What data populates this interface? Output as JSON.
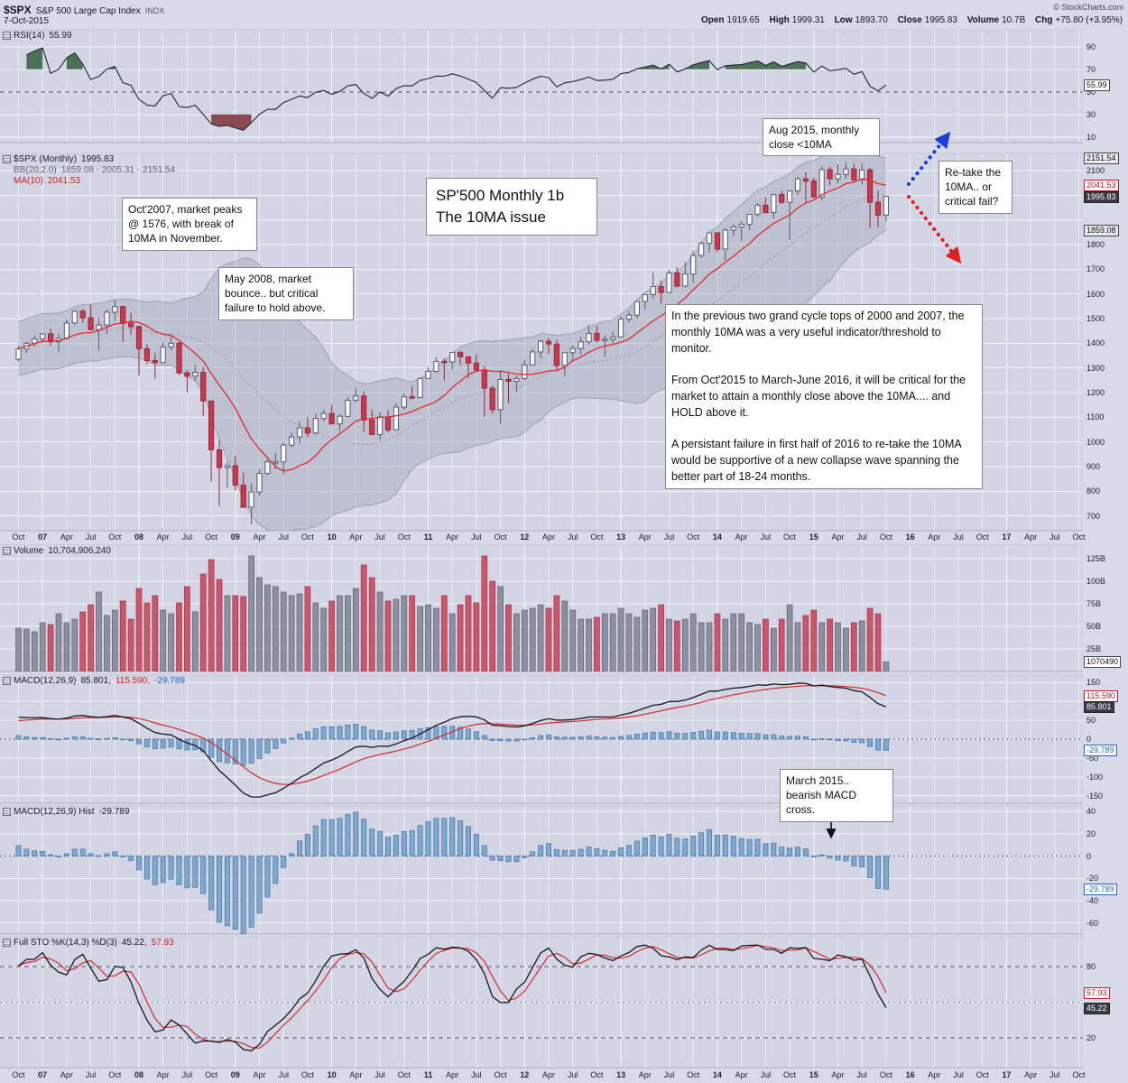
{
  "header": {
    "symbol": "$SPX",
    "name": "S&P 500 Large Cap Index",
    "exchange": "INDX",
    "copyright": "© StockCharts.com",
    "date": "7-Oct-2015",
    "quote": {
      "open_l": "Open",
      "open_v": "1919.65",
      "high_l": "High",
      "high_v": "1999.31",
      "low_l": "Low",
      "low_v": "1893.70",
      "close_l": "Close",
      "close_v": "1995.83",
      "vol_l": "Volume",
      "vol_v": "10.7B",
      "chg_l": "Chg",
      "chg_v": "+75.80 (+3.95%)"
    }
  },
  "panels": {
    "rsi": {
      "label": "RSI(14)",
      "value": "55.99"
    },
    "price": {
      "line1_label": "$SPX (Monthly)",
      "line1_value": "1995.83",
      "line2_label": "BB(20,2.0)",
      "line2_value": "1859.08 - 2005.31 - 2151.54",
      "line3_label": "MA(10)",
      "line3_value": "2041.53"
    },
    "vol": {
      "label": "Volume",
      "value": "10,704,906,240"
    },
    "macd": {
      "label": "MACD(12,26,9)",
      "value_macd": "85.801,",
      "value_signal": "115.590,",
      "value_hist": "-29.789"
    },
    "hist": {
      "label": "MACD(12,26,9) Hist",
      "value": "-29.789"
    },
    "sto": {
      "label": "Full STO %K(14,3) %D(3)",
      "value_k": "45.22,",
      "value_d": "57.93"
    }
  },
  "annotations": {
    "oct2007": "Oct'2007, market peaks @ 1576, with break of 10MA in November.",
    "may2008": "May 2008, market bounce.. but critical failure to hold above.",
    "title": "SP'500 Monthly 1b\nThe 10MA issue",
    "aug2015": "Aug 2015, monthly close <10MA",
    "retake": "Re-take the 10MA.. or critical fail?",
    "commentary": "In the previous two grand cycle tops of 2000 and 2007, the monthly 10MA was a very useful indicator/threshold to monitor.\n\nFrom Oct'2015 to March-June 2016, it will be critical for the market to attain a monthly close above the 10MA.... and HOLD above it.\n\nA persistant failure in first half of 2016 to re-take the 10MA would be supportive of a new collapse wave spanning the better part of 18-24 months.",
    "macd_cross": "March 2015.. bearish MACD cross."
  },
  "axes": {
    "x_ticks": [
      "Oct",
      "07",
      "Apr",
      "Jul",
      "Oct",
      "08",
      "Apr",
      "Jul",
      "Oct",
      "09",
      "Apr",
      "Jul",
      "Oct",
      "10",
      "Apr",
      "Jul",
      "Oct",
      "11",
      "Apr",
      "Jul",
      "Oct",
      "12",
      "Apr",
      "Jul",
      "Oct",
      "13",
      "Apr",
      "Jul",
      "Oct",
      "14",
      "Apr",
      "Jul",
      "Oct",
      "15",
      "Apr",
      "Jul",
      "Oct",
      "16",
      "Apr",
      "Jul",
      "Oct",
      "17",
      "Apr",
      "Jul",
      "Oct"
    ],
    "rsi": {
      "ticks": [
        "90",
        "70",
        "50",
        "30",
        "10"
      ],
      "badges": [
        {
          "text": "55.99",
          "v": 55.99,
          "style": "plain"
        }
      ]
    },
    "price": {
      "ticks": [
        "2100",
        "1800",
        "1700",
        "1600",
        "1500",
        "1400",
        "1300",
        "1200",
        "1100",
        "1000",
        "900",
        "800",
        "700"
      ],
      "badges": [
        {
          "text": "2151.54",
          "v": 2151.54,
          "style": "gray"
        },
        {
          "text": "2041.53",
          "v": 2041.53,
          "style": "red"
        },
        {
          "text": "1995.83",
          "v": 1995.83,
          "style": "dark"
        },
        {
          "text": "1859.08",
          "v": 1859.08,
          "style": "gray"
        }
      ]
    },
    "vol": {
      "ticks": [
        {
          "text": "125B",
          "v": 125
        },
        {
          "text": "100B",
          "v": 100
        },
        {
          "text": "75B",
          "v": 75
        },
        {
          "text": "50B",
          "v": 50
        },
        {
          "text": "25B",
          "v": 25
        }
      ],
      "badges": [
        {
          "text": "1070490",
          "v": 10.7,
          "style": "plain"
        }
      ]
    },
    "macd": {
      "ticks": [
        "150",
        "100",
        "50",
        "0",
        "-50",
        "-100",
        "-150"
      ],
      "badges": [
        {
          "text": "115.590",
          "v": 115.59,
          "style": "red"
        },
        {
          "text": "85.801",
          "v": 85.801,
          "style": "dark"
        },
        {
          "text": "-29.789",
          "v": -29.789,
          "style": "blue"
        }
      ]
    },
    "hist": {
      "ticks": [
        "40",
        "20",
        "0",
        "-20",
        "-40",
        "-60"
      ],
      "badges": [
        {
          "text": "-29.789",
          "v": -29.789,
          "style": "blue"
        }
      ]
    },
    "sto": {
      "ticks": [
        "80",
        "20"
      ],
      "badges": [
        {
          "text": "57.93",
          "v": 57.93,
          "style": "red"
        },
        {
          "text": "45.22",
          "v": 45.22,
          "style": "dark"
        }
      ]
    }
  },
  "chart_data": {
    "type": "candlestick",
    "symbol": "$SPX",
    "timeframe": "monthly",
    "first_month": "2006-10",
    "last_month": "2015-10",
    "x_axis_extends_to": "2017-10",
    "overlays": {
      "bollinger": "BB(20,2.0)",
      "moving_average": "MA(10)"
    },
    "indicators": {
      "rsi": "RSI(14)",
      "macd": "MACD(12,26,9)",
      "macd_hist": "MACD(12,26,9) Hist",
      "stochastic": "Full STO %K(14,3) %D(3)"
    },
    "indicator_values": {
      "rsi": 55.99,
      "macd": 85.801,
      "macd_signal": 115.59,
      "macd_hist": -29.789,
      "sto_k": 45.22,
      "sto_d": 57.93,
      "bb_lower": 1859.08,
      "bb_mid": 2005.31,
      "bb_upper": 2151.54,
      "ma10": 2041.53,
      "close": 1995.83,
      "volume": "10,704,906,240"
    },
    "open": [
      1335,
      1377,
      1400,
      1418,
      1438,
      1406,
      1420,
      1482,
      1530,
      1503,
      1455,
      1474,
      1526,
      1549,
      1481,
      1468,
      1378,
      1330,
      1322,
      1385,
      1400,
      1280,
      1267,
      1282,
      1166,
      968,
      896,
      903,
      825,
      735,
      797,
      872,
      919,
      919,
      987,
      1020,
      1057,
      1036,
      1095,
      1115,
      1073,
      1104,
      1169,
      1186,
      1089,
      1030,
      1101,
      1049,
      1141,
      1183,
      1180,
      1257,
      1286,
      1327,
      1325,
      1363,
      1345,
      1320,
      1292,
      1218,
      1131,
      1253,
      1246,
      1257,
      1312,
      1365,
      1408,
      1397,
      1310,
      1362,
      1379,
      1406,
      1440,
      1412,
      1416,
      1426,
      1498,
      1514,
      1569,
      1597,
      1630,
      1606,
      1685,
      1632,
      1681,
      1756,
      1805,
      1848,
      1782,
      1859,
      1872,
      1883,
      1923,
      1960,
      1930,
      2003,
      1972,
      2018,
      2067,
      2058,
      1994,
      2104,
      2067,
      2085,
      2107,
      2063,
      2103,
      1972,
      1920,
      1919.65
    ],
    "high": [
      1389,
      1407,
      1432,
      1441,
      1461,
      1438,
      1498,
      1535,
      1540,
      1556,
      1504,
      1538,
      1576,
      1552,
      1523,
      1472,
      1396,
      1360,
      1404,
      1440,
      1406,
      1292,
      1313,
      1303,
      1167,
      1007,
      918,
      943,
      875,
      832,
      888,
      930,
      956,
      996,
      1039,
      1080,
      1101,
      1113,
      1130,
      1150,
      1112,
      1180,
      1220,
      1205,
      1131,
      1120,
      1129,
      1157,
      1196,
      1227,
      1262,
      1302,
      1344,
      1339,
      1364,
      1370,
      1345,
      1356,
      1307,
      1229,
      1292,
      1277,
      1269,
      1333,
      1378,
      1414,
      1422,
      1415,
      1363,
      1391,
      1426,
      1474,
      1470,
      1434,
      1448,
      1509,
      1530,
      1570,
      1597,
      1687,
      1654,
      1698,
      1709,
      1730,
      1775,
      1813,
      1849,
      1850,
      1867,
      1883,
      1897,
      1924,
      1968,
      1991,
      2005,
      2019,
      2018,
      2076,
      2093,
      2072,
      2119,
      2117,
      2126,
      2134,
      2129,
      2132,
      2112,
      2020,
      1999.31
    ],
    "low": [
      1327,
      1360,
      1385,
      1403,
      1389,
      1364,
      1416,
      1476,
      1484,
      1454,
      1371,
      1439,
      1489,
      1406,
      1436,
      1270,
      1316,
      1257,
      1322,
      1373,
      1272,
      1200,
      1247,
      1106,
      839,
      741,
      815,
      804,
      734,
      666,
      783,
      866,
      888,
      869,
      978,
      991,
      1019,
      1029,
      1085,
      1071,
      1044,
      1098,
      1162,
      1040,
      1028,
      1010,
      1039,
      1049,
      1131,
      1173,
      1180,
      1257,
      1281,
      1249,
      1294,
      1311,
      1258,
      1282,
      1101,
      1114,
      1074,
      1158,
      1202,
      1250,
      1312,
      1340,
      1357,
      1291,
      1266,
      1325,
      1354,
      1396,
      1403,
      1343,
      1398,
      1426,
      1485,
      1501,
      1536,
      1581,
      1560,
      1604,
      1627,
      1627,
      1646,
      1746,
      1767,
      1770,
      1737,
      1834,
      1814,
      1859,
      1915,
      1930,
      1904,
      1964,
      1820,
      2001,
      1972,
      1988,
      1980,
      2040,
      2048,
      2067,
      2056,
      2044,
      1867,
      1871,
      1893.7
    ],
    "close": [
      1377,
      1400,
      1418,
      1438,
      1406,
      1420,
      1482,
      1530,
      1503,
      1455,
      1474,
      1526,
      1549,
      1481,
      1468,
      1378,
      1330,
      1322,
      1385,
      1400,
      1280,
      1267,
      1282,
      1166,
      968,
      896,
      903,
      825,
      735,
      797,
      872,
      919,
      919,
      987,
      1020,
      1057,
      1036,
      1095,
      1115,
      1073,
      1104,
      1169,
      1186,
      1089,
      1030,
      1101,
      1049,
      1141,
      1183,
      1180,
      1257,
      1286,
      1327,
      1325,
      1363,
      1345,
      1320,
      1292,
      1218,
      1131,
      1253,
      1246,
      1257,
      1312,
      1365,
      1408,
      1397,
      1310,
      1362,
      1379,
      1406,
      1440,
      1412,
      1416,
      1426,
      1498,
      1514,
      1569,
      1597,
      1630,
      1606,
      1685,
      1632,
      1681,
      1756,
      1805,
      1848,
      1782,
      1859,
      1872,
      1883,
      1923,
      1960,
      1930,
      2003,
      1972,
      2018,
      2067,
      2058,
      1994,
      2104,
      2067,
      2085,
      2107,
      2063,
      2103,
      1972,
      1920,
      1995.83
    ],
    "volume_billions": [
      48,
      47,
      44,
      54,
      52,
      64,
      54,
      58,
      66,
      74,
      88,
      62,
      68,
      78,
      58,
      92,
      76,
      84,
      68,
      64,
      76,
      94,
      66,
      108,
      124,
      102,
      84,
      84,
      83,
      128,
      104,
      96,
      94,
      88,
      84,
      86,
      94,
      76,
      70,
      78,
      84,
      84,
      92,
      118,
      104,
      88,
      78,
      80,
      84,
      84,
      72,
      74,
      70,
      84,
      64,
      74,
      84,
      76,
      128,
      100,
      94,
      74,
      64,
      68,
      70,
      74,
      70,
      84,
      78,
      68,
      58,
      58,
      60,
      64,
      64,
      70,
      64,
      60,
      68,
      70,
      74,
      58,
      56,
      58,
      64,
      54,
      54,
      64,
      58,
      64,
      64,
      54,
      52,
      58,
      48,
      58,
      74,
      54,
      62,
      68,
      54,
      58,
      54,
      48,
      54,
      56,
      70,
      64,
      10.7
    ]
  }
}
